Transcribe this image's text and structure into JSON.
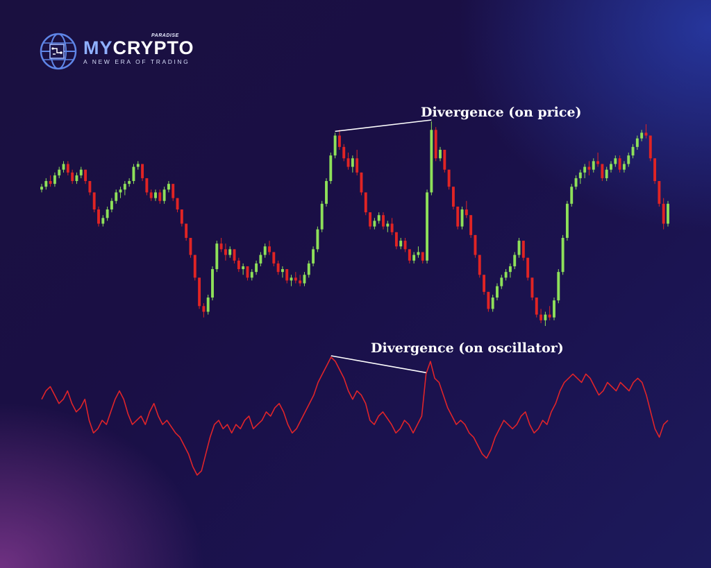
{
  "brand": {
    "name_part1": "MY",
    "name_part2": "CRYPTO",
    "superscript": "PARADISE",
    "tagline": "A NEW ERA OF TRADING",
    "icon": "globe-circuit-icon",
    "accent_color": "#8fb0ff"
  },
  "colors": {
    "up_candle": "#8ee05a",
    "down_candle": "#e02424",
    "oscillator": "#e0242a",
    "divergence_line": "#ffffff"
  },
  "chart_data": [
    {
      "type": "candlestick",
      "title": "",
      "xlabel": "",
      "ylabel": "",
      "grid": false,
      "annotations": [
        {
          "text": "Divergence (on price)",
          "from_x": 67,
          "to_x": 89
        }
      ],
      "ohlc": [
        [
          70,
          72,
          69,
          71
        ],
        [
          71,
          74,
          70,
          73
        ],
        [
          73,
          75,
          71,
          72
        ],
        [
          72,
          76,
          71,
          75
        ],
        [
          75,
          78,
          74,
          77
        ],
        [
          77,
          80,
          76,
          79
        ],
        [
          79,
          80,
          75,
          76
        ],
        [
          76,
          77,
          72,
          73
        ],
        [
          73,
          76,
          72,
          75
        ],
        [
          75,
          78,
          74,
          77
        ],
        [
          77,
          77,
          72,
          73
        ],
        [
          73,
          73,
          68,
          69
        ],
        [
          69,
          69,
          62,
          63
        ],
        [
          63,
          64,
          57,
          58
        ],
        [
          58,
          61,
          57,
          60
        ],
        [
          60,
          64,
          59,
          63
        ],
        [
          63,
          67,
          62,
          66
        ],
        [
          66,
          70,
          65,
          69
        ],
        [
          69,
          71,
          67,
          70
        ],
        [
          70,
          73,
          68,
          72
        ],
        [
          72,
          74,
          71,
          73
        ],
        [
          73,
          79,
          72,
          78
        ],
        [
          78,
          80,
          77,
          79
        ],
        [
          79,
          79,
          73,
          74
        ],
        [
          74,
          74,
          68,
          69
        ],
        [
          69,
          70,
          66,
          67
        ],
        [
          67,
          70,
          66,
          69
        ],
        [
          69,
          70,
          65,
          66
        ],
        [
          66,
          71,
          65,
          70
        ],
        [
          70,
          73,
          69,
          72
        ],
        [
          72,
          72,
          66,
          67
        ],
        [
          67,
          67,
          62,
          63
        ],
        [
          63,
          63,
          57,
          58
        ],
        [
          58,
          58,
          52,
          53
        ],
        [
          53,
          53,
          46,
          47
        ],
        [
          47,
          47,
          38,
          39
        ],
        [
          39,
          39,
          28,
          29
        ],
        [
          29,
          30,
          25,
          27
        ],
        [
          27,
          33,
          26,
          32
        ],
        [
          32,
          43,
          31,
          42
        ],
        [
          42,
          52,
          41,
          51
        ],
        [
          51,
          53,
          48,
          49
        ],
        [
          49,
          51,
          45,
          47
        ],
        [
          47,
          50,
          46,
          49
        ],
        [
          49,
          49,
          44,
          45
        ],
        [
          45,
          46,
          41,
          42
        ],
        [
          42,
          44,
          40,
          43
        ],
        [
          43,
          43,
          38,
          39
        ],
        [
          39,
          42,
          38,
          41
        ],
        [
          41,
          45,
          40,
          44
        ],
        [
          44,
          48,
          43,
          47
        ],
        [
          47,
          51,
          46,
          50
        ],
        [
          50,
          52,
          47,
          48
        ],
        [
          48,
          48,
          43,
          44
        ],
        [
          44,
          45,
          40,
          41
        ],
        [
          41,
          43,
          39,
          42
        ],
        [
          42,
          42,
          37,
          38
        ],
        [
          38,
          40,
          36,
          39
        ],
        [
          39,
          41,
          37,
          38
        ],
        [
          38,
          40,
          36,
          37
        ],
        [
          37,
          41,
          36,
          40
        ],
        [
          40,
          45,
          39,
          44
        ],
        [
          44,
          50,
          43,
          49
        ],
        [
          49,
          57,
          48,
          56
        ],
        [
          56,
          66,
          55,
          65
        ],
        [
          65,
          74,
          64,
          73
        ],
        [
          73,
          83,
          72,
          82
        ],
        [
          82,
          90,
          81,
          89
        ],
        [
          89,
          91,
          84,
          85
        ],
        [
          85,
          86,
          80,
          81
        ],
        [
          81,
          83,
          77,
          78
        ],
        [
          78,
          82,
          76,
          81
        ],
        [
          81,
          84,
          75,
          76
        ],
        [
          76,
          76,
          68,
          69
        ],
        [
          69,
          69,
          61,
          62
        ],
        [
          62,
          62,
          56,
          57
        ],
        [
          57,
          60,
          56,
          59
        ],
        [
          59,
          62,
          58,
          61
        ],
        [
          61,
          62,
          56,
          57
        ],
        [
          57,
          59,
          55,
          58
        ],
        [
          58,
          60,
          54,
          55
        ],
        [
          55,
          55,
          49,
          50
        ],
        [
          50,
          53,
          49,
          52
        ],
        [
          52,
          53,
          48,
          49
        ],
        [
          49,
          49,
          44,
          45
        ],
        [
          45,
          48,
          44,
          47
        ],
        [
          47,
          50,
          46,
          48
        ],
        [
          48,
          48,
          44,
          45
        ],
        [
          45,
          70,
          44,
          69
        ],
        [
          69,
          94,
          68,
          91
        ],
        [
          91,
          92,
          80,
          81
        ],
        [
          81,
          85,
          80,
          84
        ],
        [
          84,
          84,
          76,
          77
        ],
        [
          77,
          77,
          70,
          71
        ],
        [
          71,
          71,
          63,
          64
        ],
        [
          64,
          64,
          56,
          57
        ],
        [
          57,
          64,
          56,
          63
        ],
        [
          63,
          66,
          60,
          61
        ],
        [
          61,
          61,
          53,
          54
        ],
        [
          54,
          54,
          46,
          47
        ],
        [
          47,
          47,
          39,
          40
        ],
        [
          40,
          40,
          33,
          34
        ],
        [
          34,
          34,
          27,
          28
        ],
        [
          28,
          33,
          27,
          32
        ],
        [
          32,
          37,
          31,
          36
        ],
        [
          36,
          40,
          35,
          39
        ],
        [
          39,
          42,
          38,
          41
        ],
        [
          41,
          44,
          39,
          43
        ],
        [
          43,
          48,
          42,
          47
        ],
        [
          47,
          53,
          46,
          52
        ],
        [
          52,
          52,
          45,
          46
        ],
        [
          46,
          46,
          38,
          39
        ],
        [
          39,
          39,
          31,
          32
        ],
        [
          32,
          32,
          25,
          26
        ],
        [
          26,
          28,
          23,
          24
        ],
        [
          24,
          27,
          22,
          26
        ],
        [
          26,
          29,
          24,
          25
        ],
        [
          25,
          32,
          24,
          31
        ],
        [
          31,
          42,
          30,
          41
        ],
        [
          41,
          54,
          40,
          53
        ],
        [
          53,
          66,
          52,
          65
        ],
        [
          65,
          72,
          64,
          71
        ],
        [
          71,
          75,
          70,
          74
        ],
        [
          74,
          77,
          72,
          76
        ],
        [
          76,
          79,
          74,
          78
        ],
        [
          78,
          80,
          75,
          77
        ],
        [
          77,
          81,
          76,
          80
        ],
        [
          80,
          83,
          78,
          79
        ],
        [
          79,
          79,
          73,
          74
        ],
        [
          74,
          78,
          73,
          77
        ],
        [
          77,
          80,
          76,
          79
        ],
        [
          79,
          82,
          78,
          81
        ],
        [
          81,
          82,
          76,
          77
        ],
        [
          77,
          80,
          76,
          79
        ],
        [
          79,
          83,
          78,
          82
        ],
        [
          82,
          86,
          81,
          85
        ],
        [
          85,
          89,
          84,
          88
        ],
        [
          88,
          91,
          87,
          90
        ],
        [
          90,
          93,
          88,
          89
        ],
        [
          89,
          89,
          80,
          81
        ],
        [
          81,
          81,
          72,
          73
        ],
        [
          73,
          73,
          64,
          65
        ],
        [
          65,
          67,
          56,
          58
        ],
        [
          58,
          66,
          57,
          65
        ]
      ]
    },
    {
      "type": "line",
      "title": "",
      "xlabel": "",
      "ylabel": "",
      "grid": false,
      "annotations": [
        {
          "text": "Divergence (on oscillator)",
          "from_x": 67,
          "to_x": 89
        }
      ],
      "series": [
        {
          "values": [
            62,
            66,
            68,
            64,
            60,
            62,
            66,
            60,
            56,
            58,
            62,
            52,
            46,
            48,
            52,
            50,
            56,
            62,
            66,
            62,
            55,
            50,
            52,
            54,
            50,
            56,
            60,
            54,
            50,
            52,
            49,
            46,
            44,
            40,
            36,
            30,
            26,
            28,
            36,
            44,
            50,
            52,
            48,
            50,
            46,
            50,
            48,
            52,
            54,
            48,
            50,
            52,
            56,
            54,
            58,
            60,
            56,
            50,
            46,
            48,
            52,
            56,
            60,
            64,
            70,
            74,
            78,
            82,
            80,
            76,
            72,
            66,
            62,
            66,
            64,
            60,
            52,
            50,
            54,
            56,
            53,
            50,
            46,
            48,
            52,
            50,
            46,
            50,
            54,
            74,
            80,
            72,
            70,
            64,
            58,
            54,
            50,
            52,
            50,
            46,
            44,
            40,
            36,
            34,
            38,
            44,
            48,
            52,
            50,
            48,
            50,
            54,
            56,
            50,
            46,
            48,
            52,
            50,
            56,
            60,
            66,
            70,
            72,
            74,
            72,
            70,
            74,
            72,
            68,
            64,
            66,
            70,
            68,
            66,
            70,
            68,
            66,
            70,
            72,
            70,
            64,
            56,
            48,
            44,
            50,
            52
          ]
        }
      ]
    }
  ],
  "annotations": {
    "price": "Divergence (on price)",
    "oscillator": "Divergence (on oscillator)"
  }
}
